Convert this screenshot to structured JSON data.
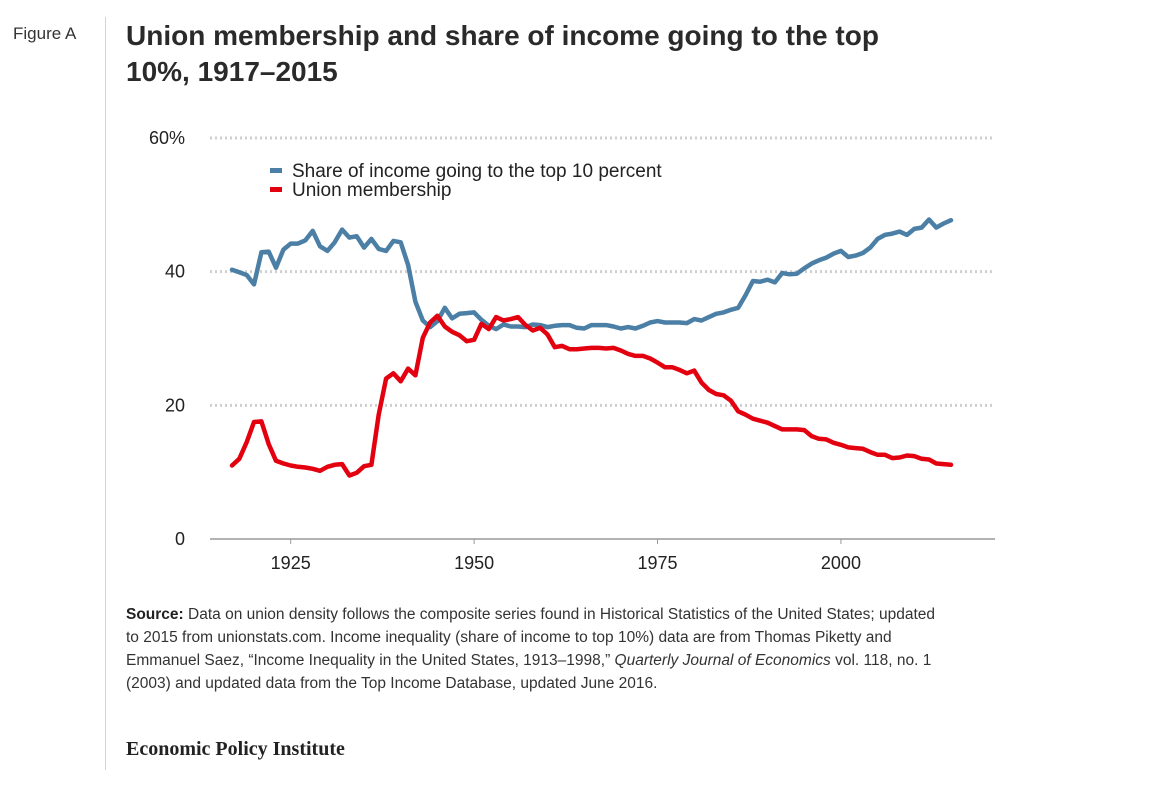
{
  "figure_label": "Figure A",
  "title": "Union membership and share of income going to the top 10%, 1917–2015",
  "source": {
    "label": "Source:",
    "text_1": "Data on union density follows the composite series found in Historical Statistics of the United States; updated to 2015 from unionstats.com. Income inequality (share of income to top 10%) data are from Thomas Piketty and Emmanuel Saez, “Income Inequality in the United States, 1913–1998,” ",
    "journal": "Quarterly Journal of Economics",
    "text_2": " vol. 118, no. 1 (2003) and updated data from the Top Income Database, updated June 2016."
  },
  "organization": "Economic Policy Institute",
  "colors": {
    "income_series": "#4b7fa6",
    "union_series": "#e3000f",
    "grid": "#cfcfcf",
    "axis": "#999999"
  },
  "chart_data": {
    "type": "line",
    "title": "Union membership and share of income going to the top 10%, 1917–2015",
    "xlabel": "",
    "ylabel": "",
    "xlim": [
      1914,
      2021
    ],
    "ylim": [
      0,
      60
    ],
    "x_ticks": [
      1925,
      1950,
      1975,
      2000
    ],
    "y_ticks": [
      {
        "value": 0,
        "label": "0"
      },
      {
        "value": 20,
        "label": "20"
      },
      {
        "value": 40,
        "label": "40"
      },
      {
        "value": 60,
        "label": "60%"
      }
    ],
    "grid": "horizontal dotted",
    "legend_position": "top-left",
    "series": [
      {
        "name": "Share of income going to the top 10 percent",
        "color": "#4b7fa6",
        "x": [
          1917,
          1918,
          1919,
          1920,
          1921,
          1922,
          1923,
          1924,
          1925,
          1926,
          1927,
          1928,
          1929,
          1930,
          1931,
          1932,
          1933,
          1934,
          1935,
          1936,
          1937,
          1938,
          1939,
          1940,
          1941,
          1942,
          1943,
          1944,
          1945,
          1946,
          1947,
          1948,
          1949,
          1950,
          1951,
          1952,
          1953,
          1954,
          1955,
          1956,
          1957,
          1958,
          1959,
          1960,
          1961,
          1962,
          1963,
          1964,
          1965,
          1966,
          1967,
          1968,
          1969,
          1970,
          1971,
          1972,
          1973,
          1974,
          1975,
          1976,
          1977,
          1978,
          1979,
          1980,
          1981,
          1982,
          1983,
          1984,
          1985,
          1986,
          1987,
          1988,
          1989,
          1990,
          1991,
          1992,
          1993,
          1994,
          1995,
          1996,
          1997,
          1998,
          1999,
          2000,
          2001,
          2002,
          2003,
          2004,
          2005,
          2006,
          2007,
          2008,
          2009,
          2010,
          2011,
          2012,
          2013,
          2014,
          2015
        ],
        "values": [
          40.3,
          39.9,
          39.5,
          38.1,
          42.9,
          43.0,
          40.6,
          43.3,
          44.2,
          44.2,
          44.7,
          46.1,
          43.8,
          43.1,
          44.4,
          46.3,
          45.1,
          45.3,
          43.6,
          44.9,
          43.4,
          43.1,
          44.6,
          44.4,
          41.0,
          35.5,
          32.7,
          31.7,
          32.6,
          34.6,
          33.0,
          33.7,
          33.8,
          33.9,
          32.8,
          31.9,
          31.4,
          32.1,
          31.8,
          31.8,
          31.7,
          32.1,
          32.0,
          31.7,
          31.9,
          32.0,
          32.0,
          31.6,
          31.5,
          32.0,
          32.0,
          32.0,
          31.8,
          31.5,
          31.7,
          31.5,
          31.9,
          32.4,
          32.6,
          32.4,
          32.4,
          32.4,
          32.3,
          32.9,
          32.7,
          33.2,
          33.7,
          33.9,
          34.3,
          34.6,
          36.5,
          38.6,
          38.5,
          38.8,
          38.4,
          39.8,
          39.6,
          39.7,
          40.5,
          41.2,
          41.7,
          42.1,
          42.7,
          43.1,
          42.2,
          42.4,
          42.8,
          43.6,
          44.9,
          45.5,
          45.7,
          46.0,
          45.5,
          46.4,
          46.6,
          47.8,
          46.6,
          47.2,
          47.7
        ]
      },
      {
        "name": "Union membership",
        "color": "#e3000f",
        "x": [
          1917,
          1918,
          1919,
          1920,
          1921,
          1922,
          1923,
          1924,
          1925,
          1926,
          1927,
          1928,
          1929,
          1930,
          1931,
          1932,
          1933,
          1934,
          1935,
          1936,
          1937,
          1938,
          1939,
          1940,
          1941,
          1942,
          1943,
          1944,
          1945,
          1946,
          1947,
          1948,
          1949,
          1950,
          1951,
          1952,
          1953,
          1954,
          1955,
          1956,
          1957,
          1958,
          1959,
          1960,
          1961,
          1962,
          1963,
          1964,
          1965,
          1966,
          1967,
          1968,
          1969,
          1970,
          1971,
          1972,
          1973,
          1974,
          1975,
          1976,
          1977,
          1978,
          1979,
          1980,
          1981,
          1982,
          1983,
          1984,
          1985,
          1986,
          1987,
          1988,
          1989,
          1990,
          1991,
          1992,
          1993,
          1994,
          1995,
          1996,
          1997,
          1998,
          1999,
          2000,
          2001,
          2002,
          2003,
          2004,
          2005,
          2006,
          2007,
          2008,
          2009,
          2010,
          2011,
          2012,
          2013,
          2014,
          2015
        ],
        "values": [
          11.0,
          12.0,
          14.5,
          17.5,
          17.6,
          14.2,
          11.7,
          11.3,
          11.0,
          10.8,
          10.7,
          10.5,
          10.2,
          10.8,
          11.1,
          11.2,
          9.5,
          9.9,
          10.9,
          11.1,
          18.6,
          24.0,
          24.8,
          23.6,
          25.5,
          24.5,
          30.1,
          32.4,
          33.4,
          31.8,
          31.0,
          30.5,
          29.6,
          29.8,
          32.2,
          31.4,
          33.2,
          32.7,
          32.9,
          33.2,
          32.0,
          31.2,
          31.6,
          30.6,
          28.7,
          28.9,
          28.4,
          28.4,
          28.5,
          28.6,
          28.6,
          28.5,
          28.6,
          28.2,
          27.7,
          27.4,
          27.4,
          27.0,
          26.4,
          25.7,
          25.7,
          25.3,
          24.8,
          25.2,
          23.4,
          22.3,
          21.7,
          21.5,
          20.7,
          19.1,
          18.6,
          18.0,
          17.7,
          17.4,
          16.9,
          16.4,
          16.4,
          16.4,
          16.3,
          15.4,
          15.0,
          14.9,
          14.4,
          14.1,
          13.7,
          13.6,
          13.5,
          13.0,
          12.6,
          12.6,
          12.1,
          12.2,
          12.5,
          12.4,
          12.0,
          11.9,
          11.3,
          11.2,
          11.1
        ]
      }
    ]
  }
}
